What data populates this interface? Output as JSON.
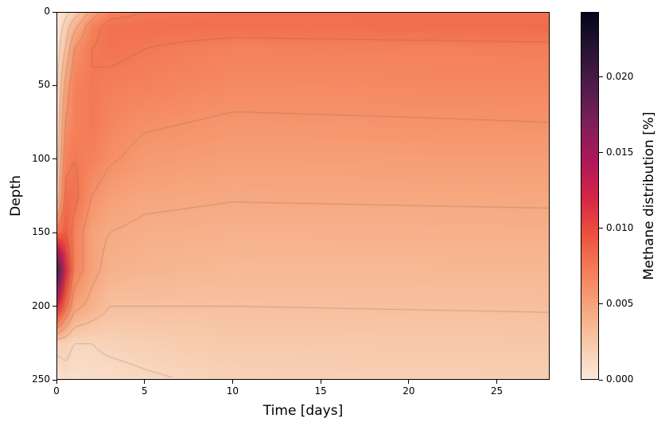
{
  "chart_data": {
    "type": "heatmap",
    "xlabel": "Time [days]",
    "ylabel": "Depth",
    "colorbar_label": "Methane distribution [%]",
    "colormap": "rocket_r",
    "xlim": [
      0,
      28
    ],
    "ylim": [
      250,
      0
    ],
    "clim": [
      0,
      0.0243
    ],
    "x_ticks": [
      "0",
      "5",
      "10",
      "15",
      "20",
      "25"
    ],
    "y_ticks": [
      "0",
      "50",
      "100",
      "150",
      "200",
      "250"
    ],
    "colorbar_ticks": [
      "0.000",
      "0.005",
      "0.010",
      "0.015",
      "0.020"
    ],
    "contours": true,
    "grid_time": [
      0,
      0.5,
      1,
      2,
      3,
      5,
      10,
      28
    ],
    "grid_depth": [
      0,
      10,
      25,
      50,
      75,
      100,
      125,
      150,
      175,
      200,
      225,
      250
    ],
    "values": [
      [
        0.0,
        0.0003,
        0.0006,
        0.001,
        0.0015,
        0.002,
        0.003,
        0.008,
        0.022,
        0.012,
        0.002,
        0.0005
      ],
      [
        0.001,
        0.002,
        0.003,
        0.005,
        0.006,
        0.007,
        0.008,
        0.009,
        0.012,
        0.008,
        0.002,
        0.001
      ],
      [
        0.002,
        0.004,
        0.006,
        0.007,
        0.007,
        0.0075,
        0.008,
        0.007,
        0.007,
        0.005,
        0.0015,
        0.0008
      ],
      [
        0.005,
        0.007,
        0.0075,
        0.0075,
        0.0075,
        0.007,
        0.006,
        0.005,
        0.005,
        0.004,
        0.0015,
        0.001
      ],
      [
        0.007,
        0.008,
        0.0078,
        0.0072,
        0.0068,
        0.0062,
        0.0052,
        0.0045,
        0.004,
        0.003,
        0.0018,
        0.001
      ],
      [
        0.0075,
        0.008,
        0.0075,
        0.007,
        0.0062,
        0.0055,
        0.0048,
        0.0042,
        0.0038,
        0.003,
        0.002,
        0.0013
      ],
      [
        0.008,
        0.008,
        0.007,
        0.0065,
        0.0058,
        0.0052,
        0.0046,
        0.004,
        0.0035,
        0.003,
        0.0024,
        0.0018
      ],
      [
        0.008,
        0.0082,
        0.0072,
        0.0066,
        0.006,
        0.0053,
        0.0047,
        0.0041,
        0.0036,
        0.0031,
        0.0025,
        0.002
      ]
    ]
  }
}
